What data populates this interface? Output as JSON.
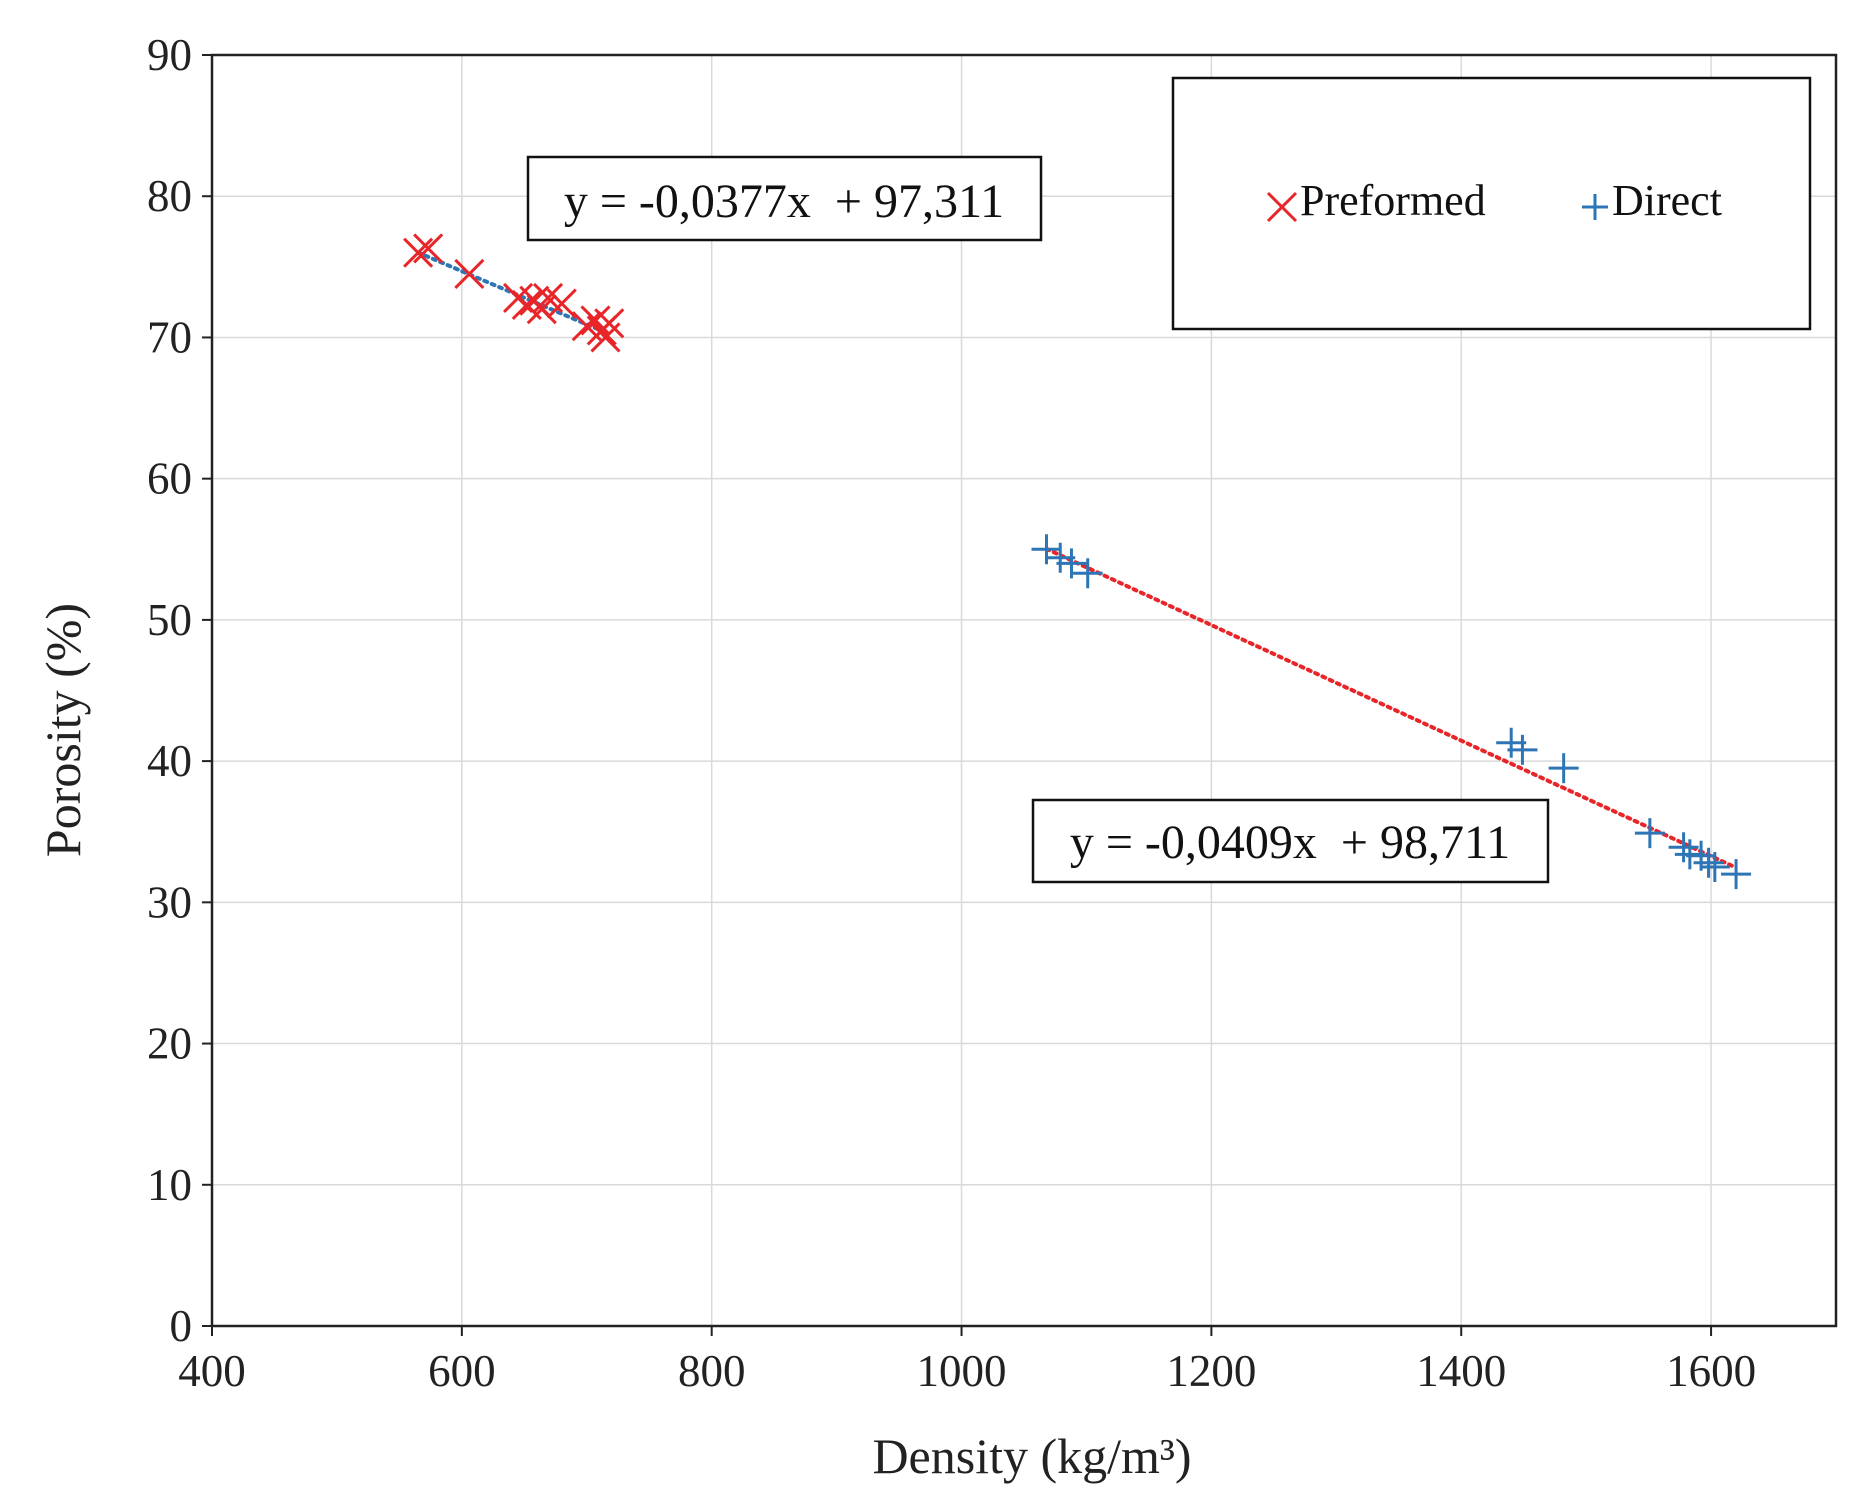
{
  "chart_data": {
    "type": "scatter",
    "xlabel": "Density (kg/m³)",
    "ylabel": "Porosity (%)",
    "xlim": [
      400,
      1700
    ],
    "ylim": [
      0,
      90
    ],
    "x_ticks": [
      400,
      600,
      800,
      1000,
      1200,
      1400,
      1600
    ],
    "y_ticks": [
      0,
      10,
      20,
      30,
      40,
      50,
      60,
      70,
      80,
      90
    ],
    "grid": true,
    "legend_position": "top-right",
    "series": [
      {
        "name": "Preformed",
        "marker": "x",
        "color": "#e8262a",
        "points": [
          [
            565,
            76.0
          ],
          [
            573,
            76.3
          ],
          [
            606,
            74.5
          ],
          [
            645,
            72.8
          ],
          [
            652,
            72.3
          ],
          [
            658,
            72.6
          ],
          [
            664,
            72.0
          ],
          [
            669,
            72.8
          ],
          [
            680,
            72.4
          ],
          [
            700,
            70.8
          ],
          [
            707,
            71.2
          ],
          [
            712,
            70.5
          ],
          [
            715,
            70.0
          ],
          [
            718,
            71.0
          ]
        ],
        "trendline": {
          "label": "y = -0,0377x  + 97,311",
          "slope": -0.0377,
          "intercept": 97.311,
          "x_range": [
            565,
            718
          ],
          "color": "#2e75b6"
        }
      },
      {
        "name": "Direct",
        "marker": "+",
        "color": "#2e75b6",
        "points": [
          [
            1068,
            55.0
          ],
          [
            1079,
            54.4
          ],
          [
            1088,
            54.0
          ],
          [
            1101,
            53.3
          ],
          [
            1440,
            41.3
          ],
          [
            1449,
            40.8
          ],
          [
            1482,
            39.5
          ],
          [
            1551,
            34.9
          ],
          [
            1578,
            33.9
          ],
          [
            1583,
            33.4
          ],
          [
            1592,
            33.3
          ],
          [
            1598,
            32.8
          ],
          [
            1603,
            32.5
          ],
          [
            1620,
            32.0
          ]
        ],
        "trendline": {
          "label": "y = -0,0409x  + 98,711",
          "slope": -0.0409,
          "intercept": 98.711,
          "x_range": [
            1068,
            1620
          ],
          "color": "#e8262a"
        }
      }
    ]
  }
}
